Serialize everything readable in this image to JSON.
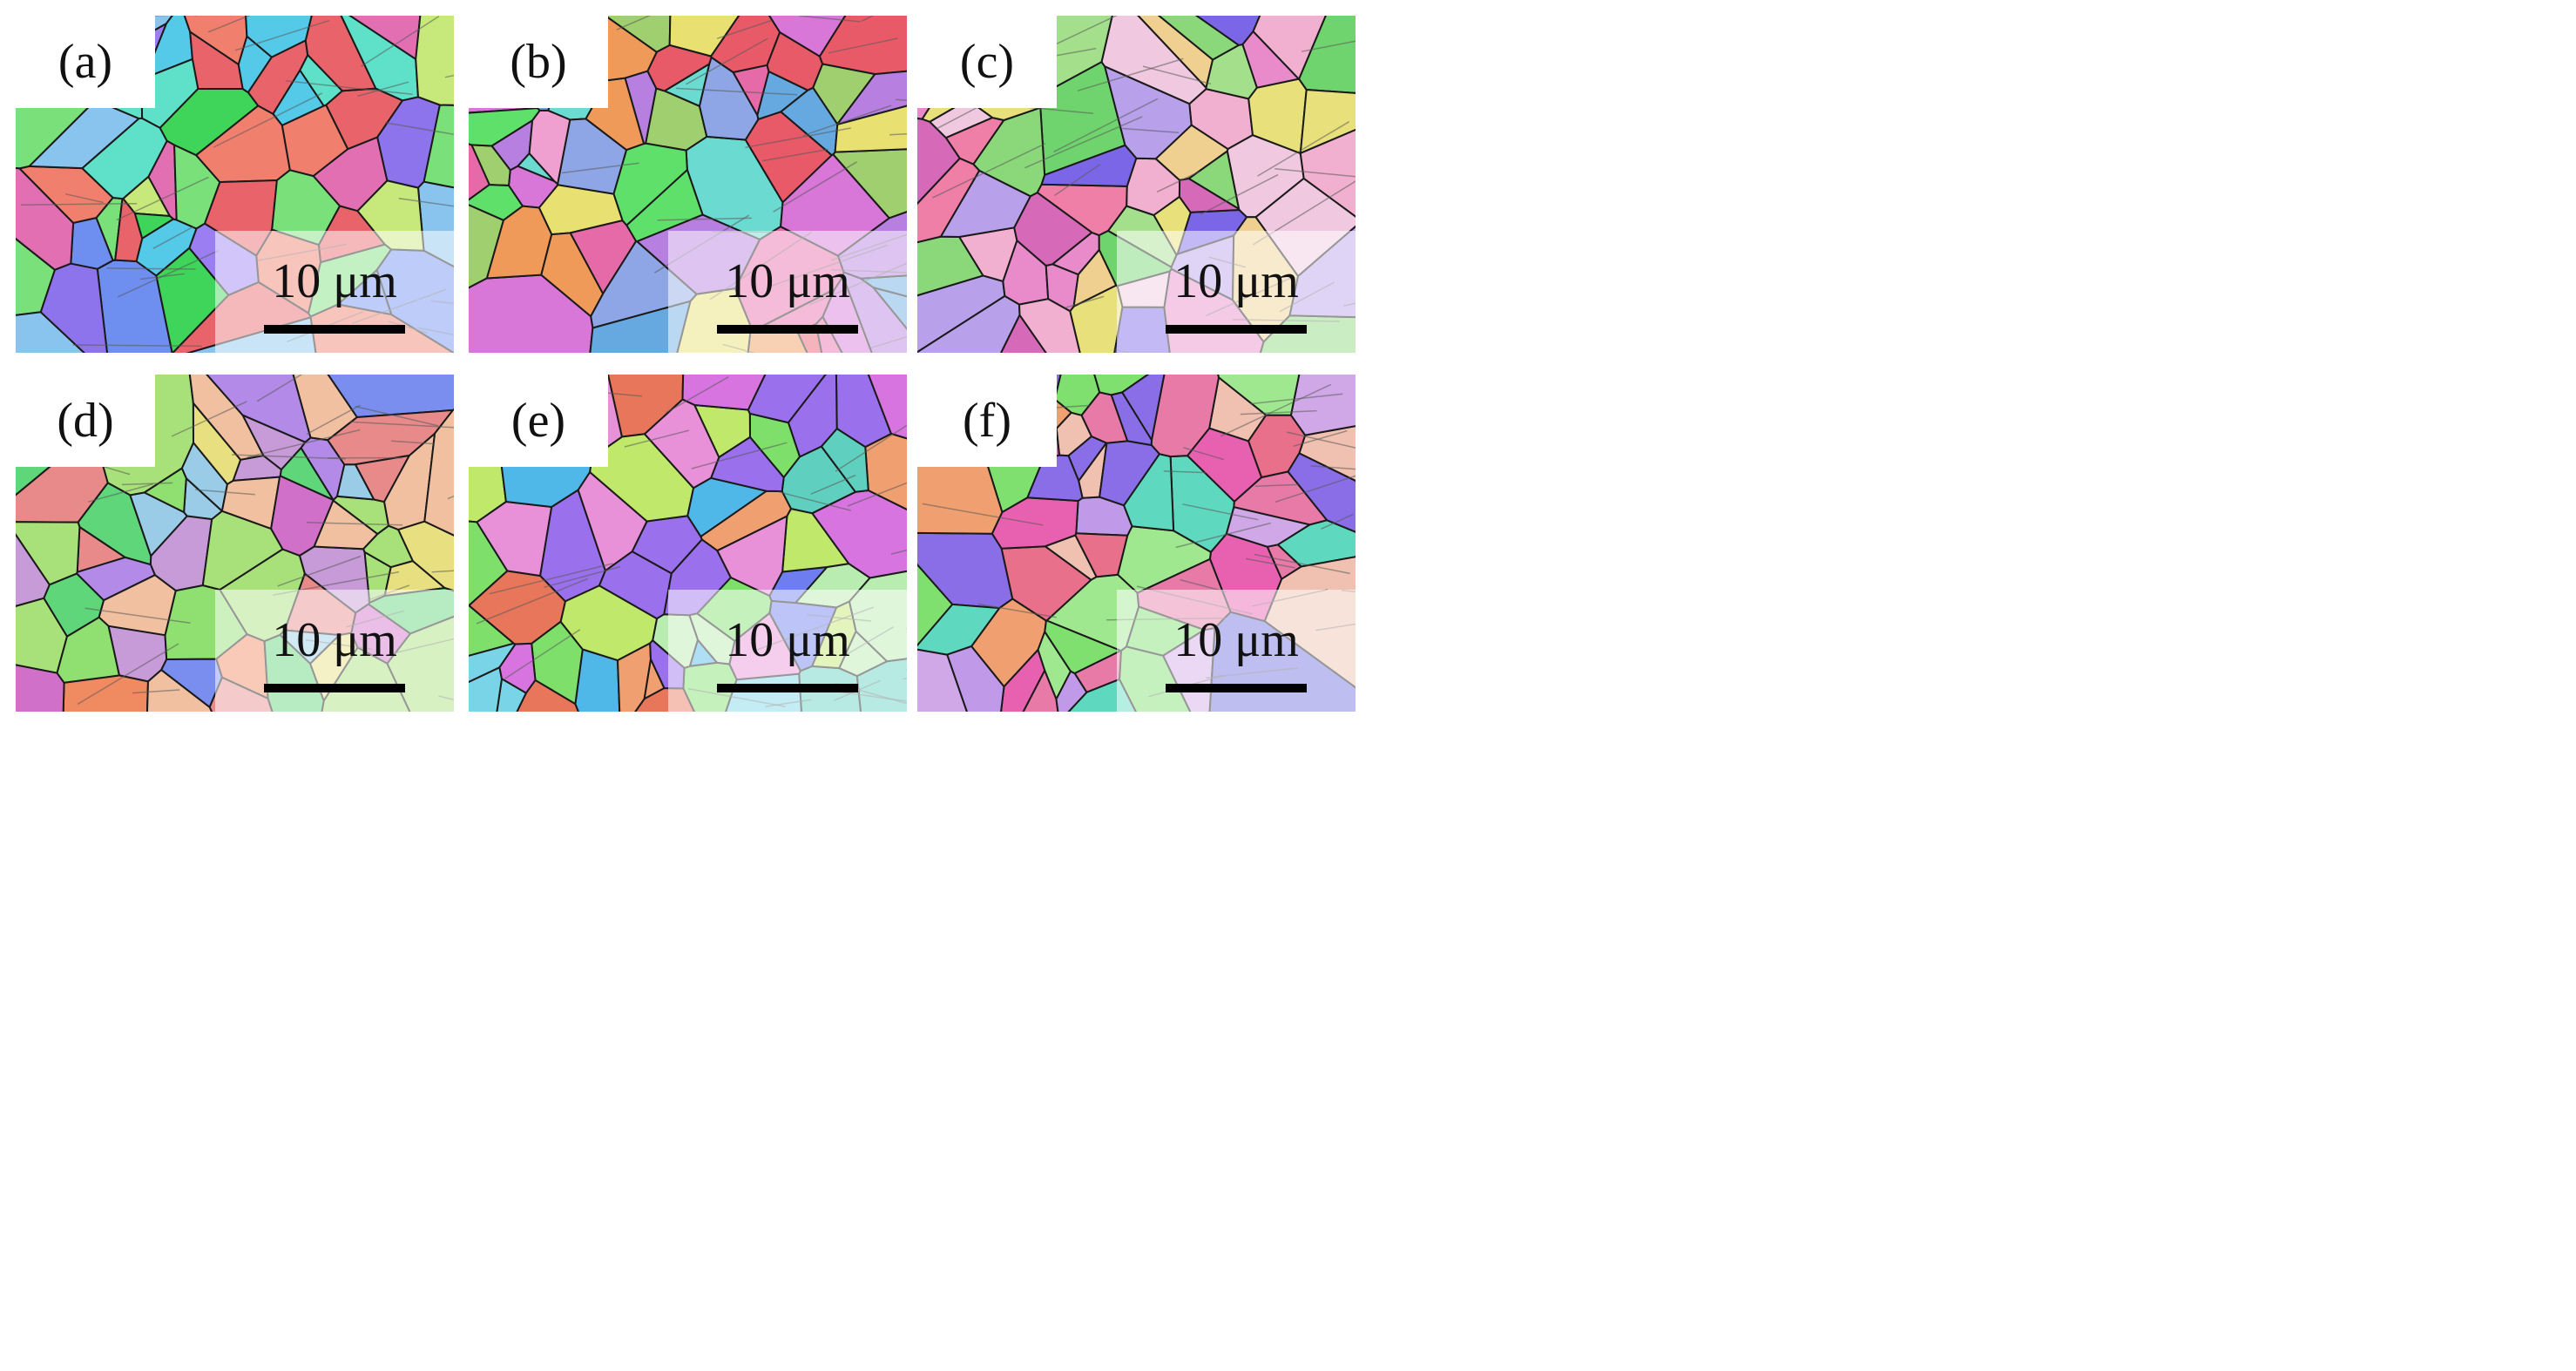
{
  "figure": {
    "panels": [
      {
        "label": "(a)",
        "scale_bar": "10 μm",
        "palette": [
          "#e8646a",
          "#55c9e8",
          "#6e8ef0",
          "#8e74ec",
          "#7ae07a",
          "#3fd45a",
          "#c7e87a",
          "#e36fb3",
          "#f07f6e",
          "#9b7ff2",
          "#5fe0c8",
          "#88c4ee"
        ]
      },
      {
        "label": "(b)",
        "scale_bar": "10 μm",
        "palette": [
          "#5fe06a",
          "#e66aa8",
          "#f09a5a",
          "#e8e070",
          "#b77fe0",
          "#8ea6e6",
          "#e85a68",
          "#f0a0d0",
          "#6bdad0",
          "#9fcf6e",
          "#d877d8",
          "#66a8e0"
        ]
      },
      {
        "label": "(c)",
        "scale_bar": "10 μm",
        "palette": [
          "#e98acb",
          "#7b66e8",
          "#f0c8e0",
          "#6fd46e",
          "#e8e07a",
          "#f07fa8",
          "#b8a0ea",
          "#8ad87a",
          "#f2b0d0",
          "#d66ab8",
          "#a4e08c",
          "#f0d090"
        ]
      },
      {
        "label": "(d)",
        "scale_bar": "10 μm",
        "palette": [
          "#8fe070",
          "#b48ae8",
          "#e8e080",
          "#e98a8a",
          "#7a8ef0",
          "#c79ad8",
          "#5fd67a",
          "#f0c0a0",
          "#9acce8",
          "#d070c8",
          "#a8e07a",
          "#f08a60"
        ]
      },
      {
        "label": "(e)",
        "scale_bar": "10 μm",
        "palette": [
          "#7ee06a",
          "#d774e0",
          "#6e7ef0",
          "#e8765a",
          "#7ad4e8",
          "#b8ecb0",
          "#9a70ec",
          "#e890d8",
          "#5fd0c0",
          "#c0e86a",
          "#f0a070",
          "#4fb8e8"
        ]
      },
      {
        "label": "(f)",
        "scale_bar": "10 μm",
        "palette": [
          "#e87aa8",
          "#8a6ee8",
          "#f0a070",
          "#7fe070",
          "#c09ae8",
          "#5fd8c0",
          "#e8708a",
          "#a0e890",
          "#f0c0b0",
          "#7070e0",
          "#e860b0",
          "#d0a8e8"
        ]
      }
    ]
  }
}
